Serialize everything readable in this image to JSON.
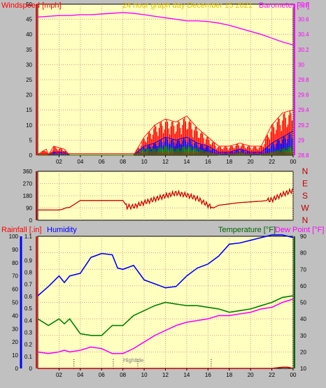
{
  "header": {
    "left": "Windspeed [mph]",
    "center": "24 hour graph day   December 15 2021",
    "right": "Barometer [.in]"
  },
  "colors": {
    "page_bg": "#c0c0c0",
    "plot_bg": "#ffffc0",
    "grid": "#c08080",
    "red": "#ff0000",
    "blue": "#0000ff",
    "green": "#008000",
    "magenta": "#ff00ff",
    "darkgreen": "#006400",
    "gold": "#e0c000",
    "darkred": "#c00000"
  },
  "chart_data": [
    {
      "type": "line",
      "panel": "wind_barometer",
      "title": "24 hour graph day   December 15 2021",
      "x_ticks": [
        "02",
        "04",
        "06",
        "08",
        "10",
        "12",
        "14",
        "16",
        "18",
        "20",
        "22",
        "00"
      ],
      "left_axis": {
        "label": "Windspeed [mph]",
        "ylim": [
          0,
          50
        ],
        "ticks": [
          "0",
          "5",
          "10",
          "15",
          "20",
          "25",
          "30",
          "35",
          "40",
          "45",
          "50"
        ]
      },
      "right_axis": {
        "label": "Barometer [.in]",
        "ylim": [
          28.8,
          30.8
        ],
        "ticks": [
          "28.8",
          "29",
          "29.2",
          "29.4",
          "29.6",
          "29.8",
          "30",
          "30.2",
          "30.4",
          "30.6",
          "30.8"
        ]
      },
      "grid": true,
      "series": [
        {
          "name": "Barometer [.in]",
          "color": "#ff00ff",
          "axis": "right",
          "x": [
            0,
            1,
            2,
            3,
            4,
            5,
            6,
            7,
            8,
            9,
            10,
            11,
            12,
            13,
            14,
            15,
            16,
            17,
            18,
            19,
            20,
            21,
            22,
            23,
            24
          ],
          "y": [
            30.63,
            30.64,
            30.65,
            30.65,
            30.66,
            30.66,
            30.67,
            30.68,
            30.69,
            30.68,
            30.66,
            30.64,
            30.62,
            30.6,
            30.58,
            30.58,
            30.57,
            30.55,
            30.52,
            30.48,
            30.44,
            30.4,
            30.35,
            30.3,
            30.26
          ]
        },
        {
          "name": "Wind gust",
          "color": "#ff0000",
          "axis": "left",
          "x": [
            0,
            0.3,
            0.8,
            1,
            1.5,
            2.5,
            3,
            3.5,
            4,
            7,
            8,
            9,
            10,
            11,
            12,
            13,
            14,
            15,
            16,
            17,
            18,
            19,
            20,
            21,
            22,
            23,
            24
          ],
          "y": [
            0,
            1,
            2,
            0,
            3,
            2,
            0,
            0,
            0,
            0,
            0,
            0,
            6,
            10,
            12,
            11,
            13,
            9,
            6,
            3,
            3,
            4,
            3,
            3,
            10,
            14,
            15
          ]
        },
        {
          "name": "Wind speed",
          "color": "#0000ff",
          "axis": "left",
          "x": [
            0,
            1,
            1.5,
            2.5,
            3,
            4,
            7,
            8,
            9,
            10,
            11,
            12,
            13,
            14,
            15,
            16,
            17,
            18,
            19,
            20,
            21,
            22,
            23,
            24
          ],
          "y": [
            0,
            0,
            1,
            1,
            0,
            0,
            0,
            0,
            0,
            3,
            4,
            6,
            5,
            6,
            4,
            3,
            1,
            1,
            2,
            1,
            1,
            4,
            6,
            8
          ]
        },
        {
          "name": "Wind average",
          "color": "#008000",
          "axis": "left",
          "x": [
            0,
            8,
            9,
            10,
            11,
            12,
            13,
            14,
            15,
            16,
            17,
            18,
            19,
            20,
            21,
            22,
            23,
            24
          ],
          "y": [
            0,
            0,
            0,
            2,
            2,
            3,
            2,
            3,
            2,
            1,
            0,
            0,
            1,
            0,
            0,
            1,
            2,
            3
          ]
        }
      ]
    },
    {
      "type": "line",
      "panel": "wind_direction",
      "left_axis": {
        "ylim": [
          0,
          360
        ],
        "ticks": [
          "0",
          "90",
          "180",
          "270",
          "360"
        ]
      },
      "right_labels": [
        "N",
        "W",
        "S",
        "E",
        "N"
      ],
      "grid": true,
      "series": [
        {
          "name": "Wind direction",
          "color": "#cc0000",
          "x": [
            0,
            2,
            2.3,
            2.6,
            3,
            4,
            6,
            8,
            8.4,
            9,
            10,
            11,
            12,
            13,
            14,
            15,
            16,
            16.5,
            17,
            18,
            19,
            20,
            21,
            22,
            23,
            24
          ],
          "y": [
            75,
            75,
            80,
            90,
            95,
            145,
            145,
            145,
            100,
            100,
            130,
            155,
            180,
            200,
            185,
            160,
            110,
            90,
            110,
            120,
            130,
            135,
            140,
            150,
            190,
            220
          ]
        }
      ]
    },
    {
      "type": "line",
      "panel": "temperature_humidity",
      "x_ticks": [
        "02",
        "04",
        "06",
        "08",
        "10",
        "12",
        "14",
        "16",
        "18",
        "20",
        "22",
        "00"
      ],
      "left_labels": {
        "rainfall": "Rainfall [.in]",
        "humidity": "Humidity",
        "temperature": "Temperature [°F]",
        "dewpoint": "Dew Point [°F]"
      },
      "humidity_axis": {
        "ylim": [
          0,
          100
        ],
        "ticks": [
          "0",
          "10",
          "20",
          "30",
          "40",
          "50",
          "60",
          "70",
          "80",
          "90",
          "100"
        ]
      },
      "rain_axis": {
        "ylim": [
          0,
          1.1
        ],
        "ticks": [
          "0",
          "0.1",
          "0.2",
          "0.3",
          "0.4",
          "0.5",
          "0.6",
          "0.7",
          "0.8",
          "0.9",
          "1",
          "1.1"
        ]
      },
      "temp_axis": {
        "ylim": [
          10,
          90
        ],
        "ticks": [
          "10",
          "20",
          "30",
          "40",
          "50",
          "60",
          "70",
          "80",
          "90"
        ]
      },
      "annotation": "Hightide",
      "grid": true,
      "series": [
        {
          "name": "Humidity",
          "color": "#0000ff",
          "axis": "humidity",
          "x": [
            0,
            1,
            2,
            2.5,
            3,
            4,
            5,
            6,
            7,
            7.5,
            8,
            9,
            10,
            11,
            12,
            13,
            14,
            15,
            16,
            17,
            18,
            19,
            20,
            21,
            22,
            23,
            24
          ],
          "y": [
            55,
            62,
            70,
            65,
            70,
            72,
            84,
            87,
            86,
            76,
            75,
            78,
            67,
            64,
            61,
            62,
            70,
            76,
            79,
            85,
            94,
            95,
            97,
            99,
            101,
            101,
            99
          ]
        },
        {
          "name": "Temperature [°F]",
          "color": "#008000",
          "axis": "temp",
          "x": [
            0,
            1,
            2,
            2.5,
            3,
            4,
            5,
            6,
            7,
            8,
            9,
            10,
            11,
            12,
            13,
            14,
            15,
            16,
            17,
            18,
            19,
            20,
            21,
            22,
            23,
            24
          ],
          "y": [
            40,
            36,
            40,
            37,
            40,
            31,
            30,
            30,
            36,
            36,
            42,
            45,
            48,
            50,
            49,
            48,
            48,
            47,
            46,
            44,
            45,
            46,
            48,
            50,
            53,
            54
          ]
        },
        {
          "name": "Dew Point [°F]",
          "color": "#ff00ff",
          "axis": "temp",
          "x": [
            0,
            1,
            2,
            2.5,
            3,
            4,
            5,
            6,
            7,
            8,
            9,
            10,
            11,
            12,
            13,
            14,
            15,
            16,
            17,
            18,
            19,
            20,
            21,
            22,
            23,
            24
          ],
          "y": [
            20,
            19,
            20,
            21,
            20,
            21,
            23,
            22,
            19,
            19,
            22,
            26,
            30,
            33,
            36,
            38,
            39,
            40,
            42,
            42,
            43,
            44,
            46,
            47,
            50,
            52
          ]
        },
        {
          "name": "Rainfall [.in]",
          "color": "#c00000",
          "axis": "rain",
          "x": [
            0,
            22,
            23,
            23.5,
            24
          ],
          "y": [
            0,
            0,
            0.01,
            0.01,
            0
          ]
        }
      ]
    }
  ]
}
